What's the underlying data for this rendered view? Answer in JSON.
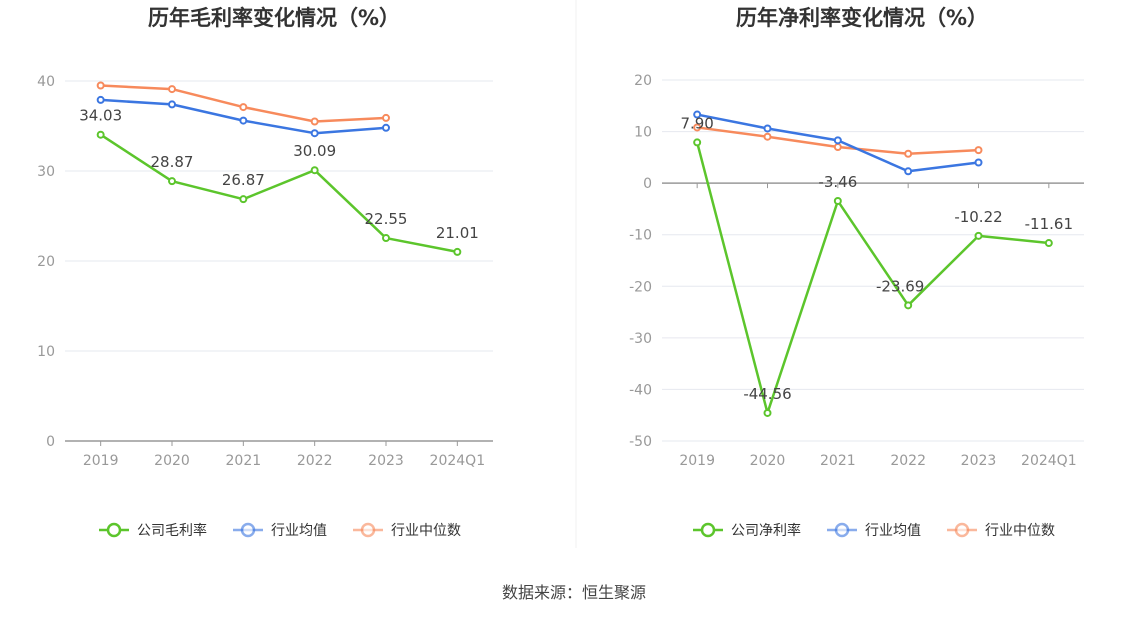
{
  "colors": {
    "company": "#5cc52c",
    "industry_avg": "#3b76e1",
    "industry_median": "#f78a5c",
    "axis": "#999999",
    "grid": "#e6e8ef"
  },
  "chart_data": [
    {
      "type": "line",
      "title": "历年毛利率变化情况（%）",
      "categories": [
        "2019",
        "2020",
        "2021",
        "2022",
        "2023",
        "2024Q1"
      ],
      "ylim": [
        0,
        40
      ],
      "yticks": [
        0,
        10,
        20,
        30,
        40
      ],
      "grid": true,
      "legend_position": "bottom",
      "series": [
        {
          "name": "公司毛利率",
          "values": [
            34.03,
            28.87,
            26.87,
            30.09,
            22.55,
            21.01
          ],
          "labels": [
            "34.03",
            "28.87",
            "26.87",
            "30.09",
            "22.55",
            "21.01"
          ]
        },
        {
          "name": "行业均值",
          "values": [
            37.9,
            37.4,
            35.6,
            34.2,
            34.8,
            null
          ]
        },
        {
          "name": "行业中位数",
          "values": [
            39.5,
            39.1,
            37.1,
            35.5,
            35.9,
            null
          ]
        }
      ]
    },
    {
      "type": "line",
      "title": "历年净利率变化情况（%）",
      "categories": [
        "2019",
        "2020",
        "2021",
        "2022",
        "2023",
        "2024Q1"
      ],
      "ylim": [
        -50,
        20
      ],
      "yticks": [
        -50,
        -40,
        -30,
        -20,
        -10,
        0,
        10,
        20
      ],
      "grid": true,
      "legend_position": "bottom",
      "series": [
        {
          "name": "公司净利率",
          "values": [
            7.9,
            -44.56,
            -3.46,
            -23.69,
            -10.22,
            -11.61
          ],
          "labels": [
            "7.90",
            "-44.56",
            "-3.46",
            "-23.69",
            "-10.22",
            "-11.61"
          ]
        },
        {
          "name": "行业均值",
          "values": [
            13.3,
            10.6,
            8.3,
            2.3,
            4.0,
            null
          ]
        },
        {
          "name": "行业中位数",
          "values": [
            10.8,
            9.0,
            7.0,
            5.7,
            6.4,
            null
          ]
        }
      ]
    }
  ],
  "footer": {
    "source": "数据来源：恒生聚源"
  }
}
